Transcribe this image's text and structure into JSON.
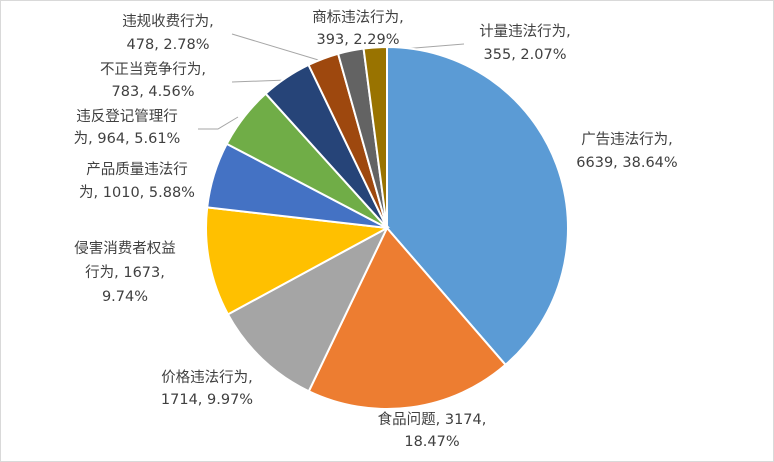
{
  "chart_data": {
    "type": "pie",
    "values": [
      6639,
      3174,
      1714,
      1673,
      1010,
      964,
      783,
      478,
      393,
      355
    ],
    "value_labels": [
      [
        "广告违法行为,",
        "6639, 38.64%"
      ],
      [
        "食品问题, 3174,",
        "18.47%"
      ],
      [
        "价格违法行为,",
        "1714, 9.97%"
      ],
      [
        "侵害消费者权益",
        "行为, 1673,",
        "9.74%"
      ],
      [
        "产品质量违法行",
        "为, 1010, 5.88%"
      ],
      [
        "违反登记管理行",
        "为, 964, 5.61%"
      ],
      [
        "不正当竞争行为,",
        "783, 4.56%"
      ],
      [
        "违规收费行为,",
        "478, 2.78%"
      ],
      [
        "商标违法行为,",
        "393, 2.29%"
      ],
      [
        "计量违法行为,",
        "355, 2.07%"
      ]
    ],
    "colors": [
      "#5b9bd5",
      "#ed7d31",
      "#a5a5a5",
      "#ffc000",
      "#4472c4",
      "#70ad47",
      "#264478",
      "#9e480e",
      "#636363",
      "#997300"
    ]
  }
}
